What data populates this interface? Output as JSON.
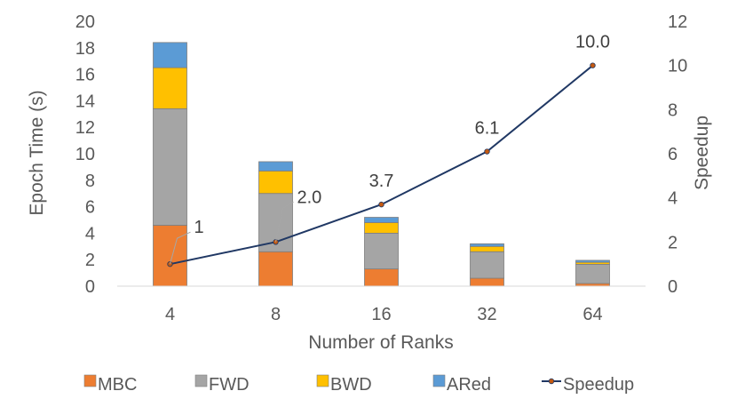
{
  "chart_data": {
    "type": "bar",
    "stacked": true,
    "categories": [
      "4",
      "8",
      "16",
      "32",
      "64"
    ],
    "series": [
      {
        "name": "MBC",
        "color": "#ED7D31",
        "values": [
          4.6,
          2.6,
          1.3,
          0.6,
          0.2
        ]
      },
      {
        "name": "FWD",
        "color": "#A5A5A5",
        "values": [
          8.8,
          4.4,
          2.7,
          2.0,
          1.45
        ]
      },
      {
        "name": "BWD",
        "color": "#FFC000",
        "values": [
          3.1,
          1.7,
          0.8,
          0.4,
          0.15
        ]
      },
      {
        "name": "ARed",
        "color": "#5B9BD5",
        "values": [
          1.9,
          0.7,
          0.4,
          0.2,
          0.15
        ]
      }
    ],
    "line_series": {
      "name": "Speedup",
      "color": "#203864",
      "marker_color": "#C55A11",
      "values": [
        1,
        2.0,
        3.7,
        6.1,
        10.0
      ],
      "labels": [
        "1",
        "2.0",
        "3.7",
        "6.1",
        "10.0"
      ],
      "axis": "secondary"
    },
    "title": "",
    "xlabel": "Number of Ranks",
    "ylabel": "Epoch Time (s)",
    "y2label": "Speedup",
    "ylim": [
      0,
      20
    ],
    "y2lim": [
      0,
      12
    ],
    "yticks": [
      0,
      2,
      4,
      6,
      8,
      10,
      12,
      14,
      16,
      18,
      20
    ],
    "y2ticks": [
      0,
      2,
      4,
      6,
      8,
      10,
      12
    ],
    "grid": false,
    "legend": "bottom"
  }
}
